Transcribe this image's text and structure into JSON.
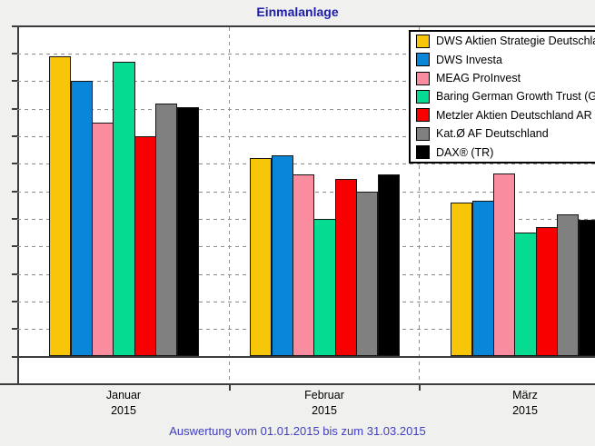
{
  "title": "Einmalanlage",
  "footer": "Auswertung vom 01.01.2015 bis zum 31.03.2015",
  "colors": {
    "title": "#1c1ca8",
    "footer": "#4040c0",
    "axis": "#3c3c3c",
    "grid": "#8f8f8f",
    "plot_background": "#ffffff",
    "page_background": "#f0f0ee"
  },
  "chart_data": {
    "type": "bar",
    "title": "Einmalanlage",
    "categories": [
      [
        "Januar",
        "2015"
      ],
      [
        "Februar",
        "2015"
      ],
      [
        "März",
        "2015"
      ]
    ],
    "series": [
      {
        "name": "DWS Aktien Strategie Deutschla",
        "color": "#f7c608",
        "values": [
          10.9,
          7.2,
          5.6
        ]
      },
      {
        "name": "DWS Investa",
        "color": "#0a86d8",
        "values": [
          10.0,
          7.3,
          5.65
        ]
      },
      {
        "name": "MEAG ProInvest",
        "color": "#fa8ca0",
        "values": [
          8.5,
          6.6,
          6.65
        ]
      },
      {
        "name": "Baring German Growth Trust (G",
        "color": "#06db92",
        "values": [
          10.7,
          5.0,
          4.5
        ]
      },
      {
        "name": "Metzler Aktien Deutschland AR",
        "color": "#f80000",
        "values": [
          8.0,
          6.45,
          4.7
        ]
      },
      {
        "name": "Kat.Ø AF Deutschland",
        "color": "#808080",
        "values": [
          9.2,
          6.0,
          5.15
        ]
      },
      {
        "name": "DAX® (TR)",
        "color": "#000000",
        "values": [
          9.05,
          6.6,
          4.95
        ]
      }
    ],
    "ylabel": "",
    "xlabel": "",
    "ylim": [
      -1,
      12
    ],
    "ytick_step": 1,
    "ytick_suffix": "%",
    "ytick_numbers_cropped": true,
    "grid": "horizontal-dashed",
    "legend_position": "top-right"
  }
}
